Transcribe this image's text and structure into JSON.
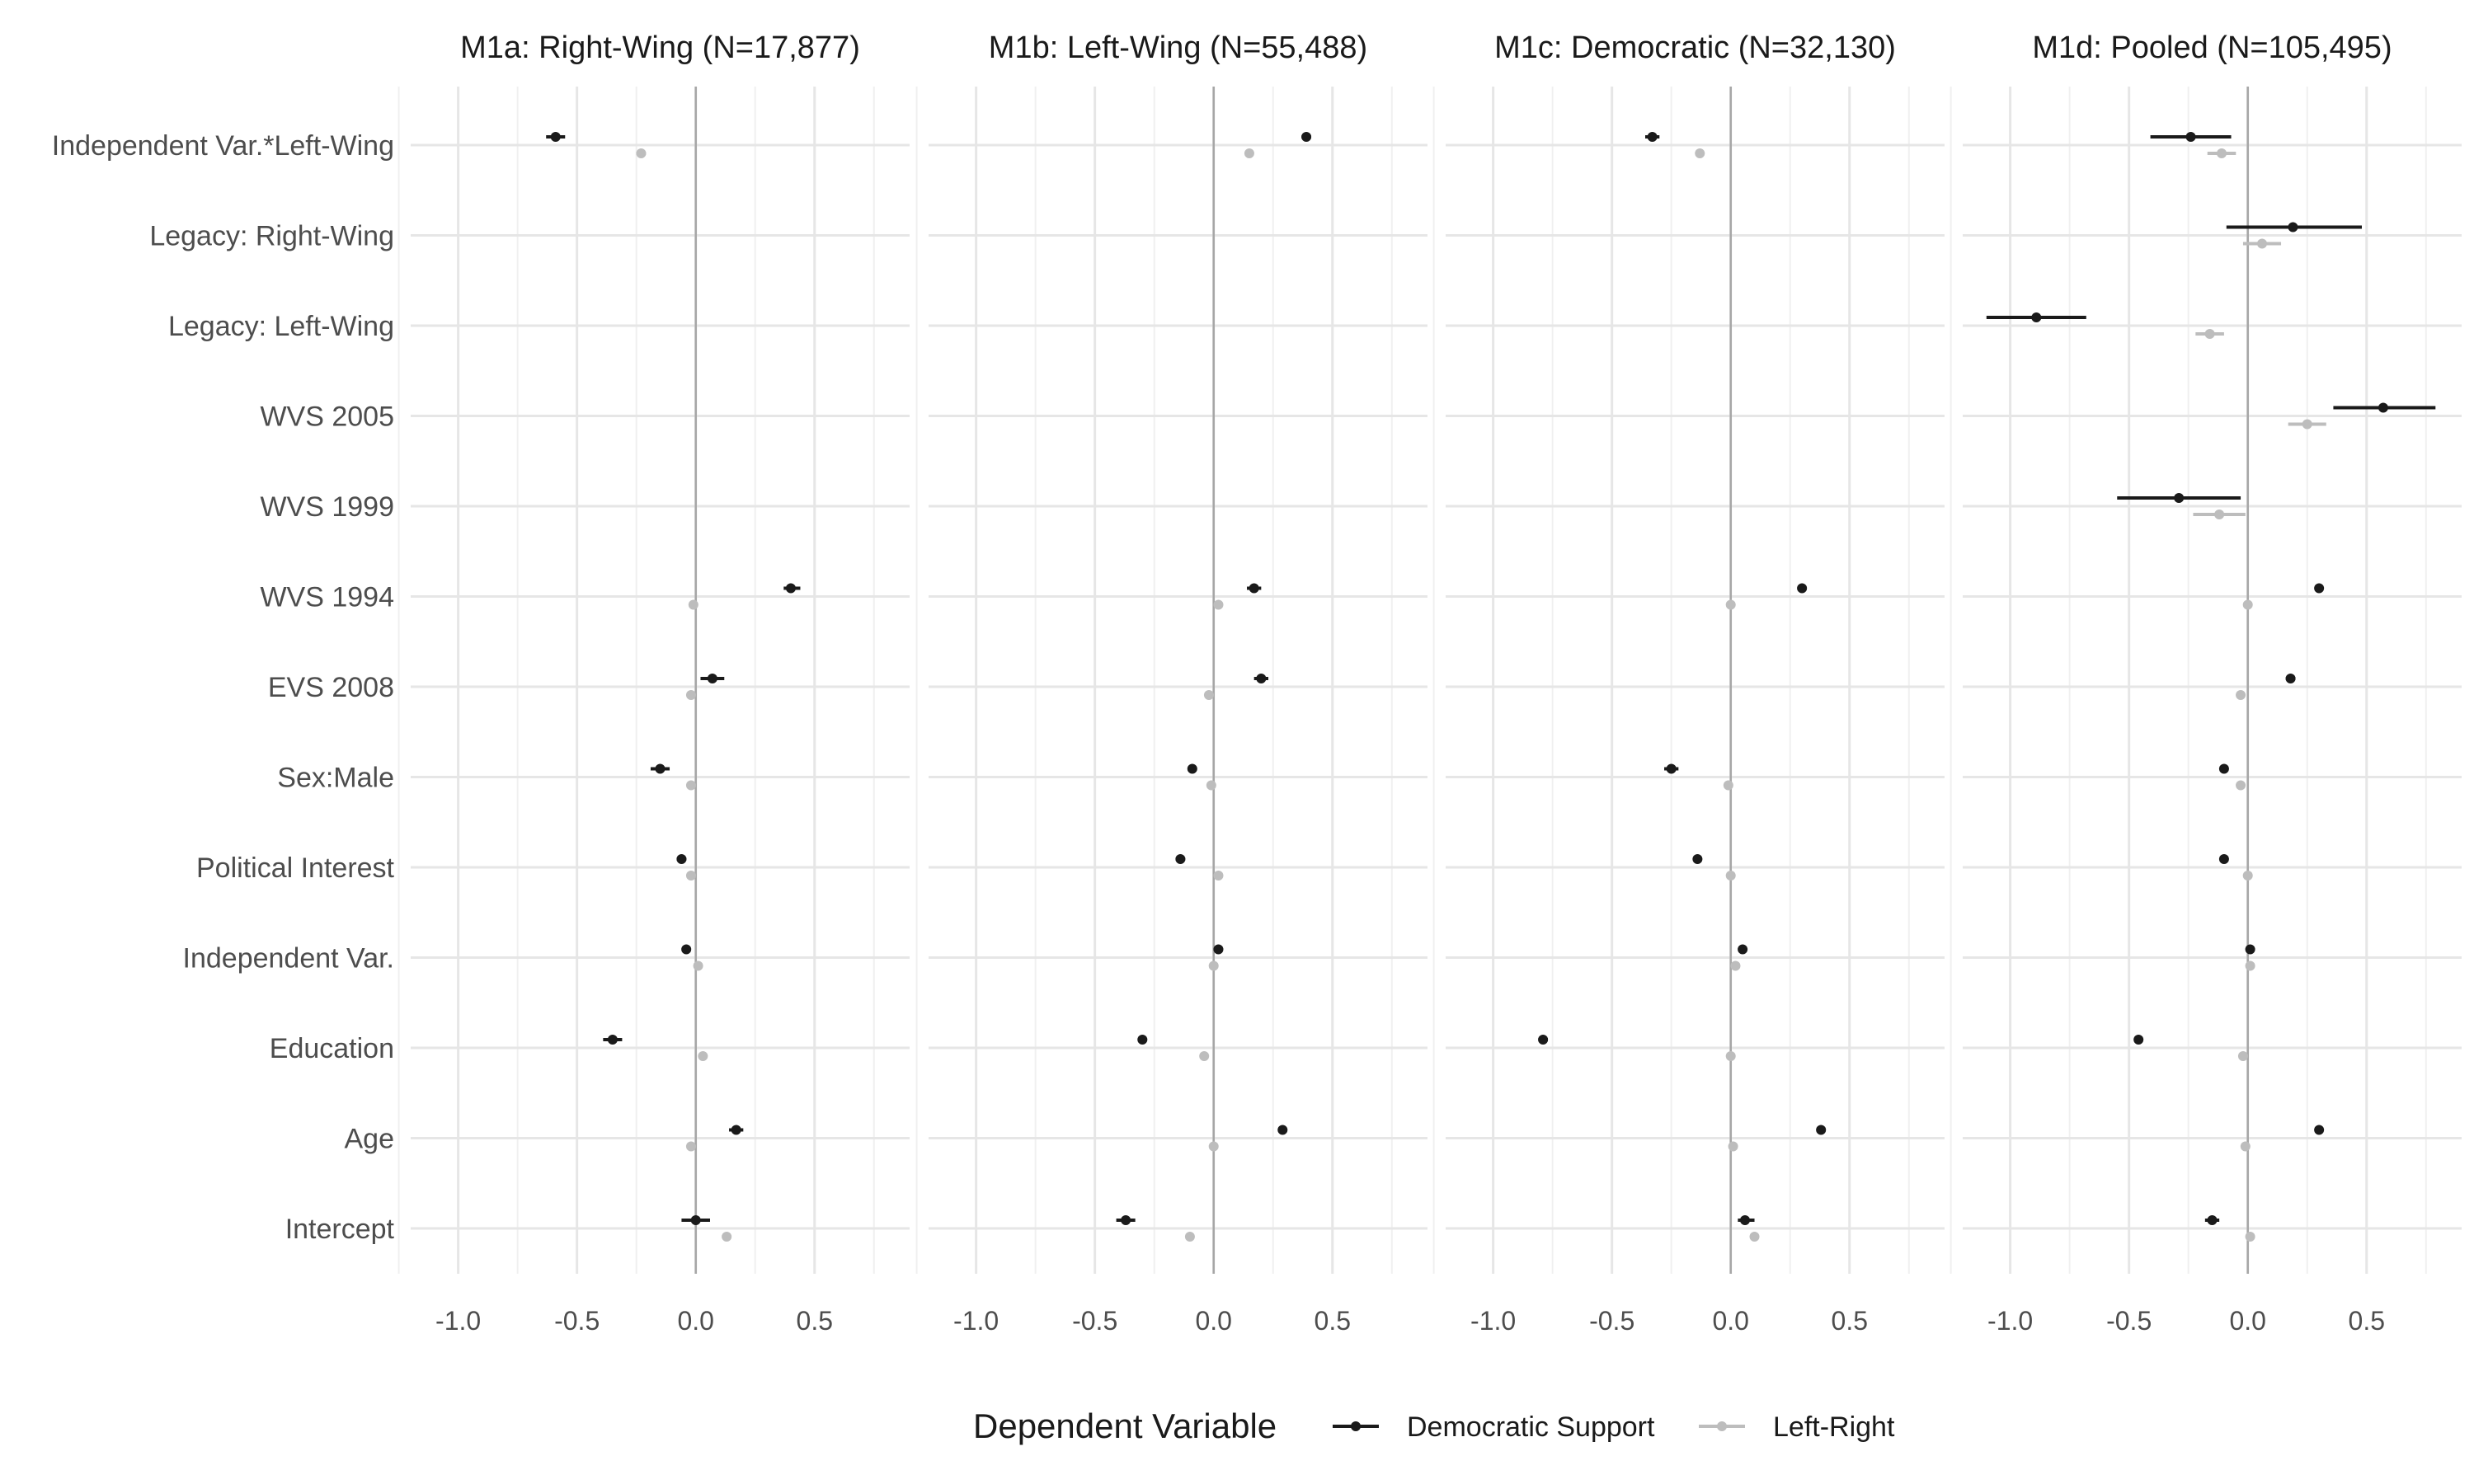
{
  "chart_data": {
    "type": "scatter",
    "subtype": "coefficient-plot-with-error-bars",
    "facets": [
      "M1a: Right-Wing (N=17,877)",
      "M1b: Left-Wing (N=55,488)",
      "M1c: Democratic (N=32,130)",
      "M1d: Pooled (N=105,495)"
    ],
    "categories": [
      "Independent Var.*Left-Wing",
      "Legacy: Right-Wing",
      "Legacy: Left-Wing",
      "WVS 2005",
      "WVS 1999",
      "WVS 1994",
      "EVS 2008",
      "Sex:Male",
      "Political Interest",
      "Independent Var.",
      "Education",
      "Age",
      "Intercept"
    ],
    "xlim": [
      -1.2,
      0.9
    ],
    "xticks": [
      -1.0,
      -0.5,
      0.0,
      0.5
    ],
    "xtick_labels": [
      "-1.0",
      "-0.5",
      "0.0",
      "0.5"
    ],
    "grid": true,
    "legend": {
      "title": "Dependent Variable",
      "position": "bottom",
      "entries": [
        "Democratic Support",
        "Left-Right"
      ]
    },
    "colors": {
      "Democratic Support": "#1a1a1a",
      "Left-Right": "#bdbdbd"
    },
    "panels": [
      {
        "series": {
          "Democratic Support": [
            {
              "category": "Independent Var.*Left-Wing",
              "est": -0.59,
              "lo": -0.63,
              "hi": -0.55
            },
            {
              "category": "WVS 1994",
              "est": 0.4,
              "lo": 0.37,
              "hi": 0.44
            },
            {
              "category": "EVS 2008",
              "est": 0.07,
              "lo": 0.02,
              "hi": 0.12
            },
            {
              "category": "Sex:Male",
              "est": -0.15,
              "lo": -0.19,
              "hi": -0.11
            },
            {
              "category": "Political Interest",
              "est": -0.06,
              "lo": -0.08,
              "hi": -0.04
            },
            {
              "category": "Independent Var.",
              "est": -0.04,
              "lo": -0.06,
              "hi": -0.02
            },
            {
              "category": "Education",
              "est": -0.35,
              "lo": -0.39,
              "hi": -0.31
            },
            {
              "category": "Age",
              "est": 0.17,
              "lo": 0.14,
              "hi": 0.2
            },
            {
              "category": "Intercept",
              "est": 0.0,
              "lo": -0.06,
              "hi": 0.06
            }
          ],
          "Left-Right": [
            {
              "category": "Independent Var.*Left-Wing",
              "est": -0.23,
              "lo": -0.25,
              "hi": -0.21
            },
            {
              "category": "WVS 1994",
              "est": -0.01,
              "lo": -0.02,
              "hi": 0.0
            },
            {
              "category": "EVS 2008",
              "est": -0.02,
              "lo": -0.03,
              "hi": -0.01
            },
            {
              "category": "Sex:Male",
              "est": -0.02,
              "lo": -0.03,
              "hi": -0.01
            },
            {
              "category": "Political Interest",
              "est": -0.02,
              "lo": -0.03,
              "hi": -0.01
            },
            {
              "category": "Independent Var.",
              "est": 0.01,
              "lo": 0.0,
              "hi": 0.02
            },
            {
              "category": "Education",
              "est": 0.03,
              "lo": 0.02,
              "hi": 0.04
            },
            {
              "category": "Age",
              "est": -0.02,
              "lo": -0.03,
              "hi": -0.01
            },
            {
              "category": "Intercept",
              "est": 0.13,
              "lo": 0.11,
              "hi": 0.15
            }
          ]
        }
      },
      {
        "series": {
          "Democratic Support": [
            {
              "category": "Independent Var.*Left-Wing",
              "est": 0.39,
              "lo": 0.37,
              "hi": 0.41
            },
            {
              "category": "WVS 1994",
              "est": 0.17,
              "lo": 0.14,
              "hi": 0.2
            },
            {
              "category": "EVS 2008",
              "est": 0.2,
              "lo": 0.17,
              "hi": 0.23
            },
            {
              "category": "Sex:Male",
              "est": -0.09,
              "lo": -0.11,
              "hi": -0.07
            },
            {
              "category": "Political Interest",
              "est": -0.14,
              "lo": -0.16,
              "hi": -0.12
            },
            {
              "category": "Independent Var.",
              "est": 0.02,
              "lo": 0.0,
              "hi": 0.03
            },
            {
              "category": "Education",
              "est": -0.3,
              "lo": -0.32,
              "hi": -0.28
            },
            {
              "category": "Age",
              "est": 0.29,
              "lo": 0.27,
              "hi": 0.31
            },
            {
              "category": "Intercept",
              "est": -0.37,
              "lo": -0.41,
              "hi": -0.33
            }
          ],
          "Left-Right": [
            {
              "category": "Independent Var.*Left-Wing",
              "est": 0.15,
              "lo": 0.14,
              "hi": 0.16
            },
            {
              "category": "WVS 1994",
              "est": 0.02,
              "lo": 0.01,
              "hi": 0.03
            },
            {
              "category": "EVS 2008",
              "est": -0.02,
              "lo": -0.03,
              "hi": -0.01
            },
            {
              "category": "Sex:Male",
              "est": -0.01,
              "lo": -0.02,
              "hi": 0.0
            },
            {
              "category": "Political Interest",
              "est": 0.02,
              "lo": 0.01,
              "hi": 0.03
            },
            {
              "category": "Independent Var.",
              "est": 0.0,
              "lo": -0.01,
              "hi": 0.01
            },
            {
              "category": "Education",
              "est": -0.04,
              "lo": -0.05,
              "hi": -0.03
            },
            {
              "category": "Age",
              "est": 0.0,
              "lo": -0.01,
              "hi": 0.01
            },
            {
              "category": "Intercept",
              "est": -0.1,
              "lo": -0.11,
              "hi": -0.09
            }
          ]
        }
      },
      {
        "series": {
          "Democratic Support": [
            {
              "category": "Independent Var.*Left-Wing",
              "est": -0.33,
              "lo": -0.36,
              "hi": -0.3
            },
            {
              "category": "WVS 1994",
              "est": 0.3,
              "lo": 0.28,
              "hi": 0.32
            },
            {
              "category": "Sex:Male",
              "est": -0.25,
              "lo": -0.28,
              "hi": -0.22
            },
            {
              "category": "Political Interest",
              "est": -0.14,
              "lo": -0.15,
              "hi": -0.13
            },
            {
              "category": "Independent Var.",
              "est": 0.05,
              "lo": 0.04,
              "hi": 0.06
            },
            {
              "category": "Education",
              "est": -0.79,
              "lo": -0.81,
              "hi": -0.77
            },
            {
              "category": "Age",
              "est": 0.38,
              "lo": 0.36,
              "hi": 0.4
            },
            {
              "category": "Intercept",
              "est": 0.06,
              "lo": 0.03,
              "hi": 0.1
            }
          ],
          "Left-Right": [
            {
              "category": "Independent Var.*Left-Wing",
              "est": -0.13,
              "lo": -0.14,
              "hi": -0.12
            },
            {
              "category": "WVS 1994",
              "est": 0.0,
              "lo": -0.01,
              "hi": 0.01
            },
            {
              "category": "Sex:Male",
              "est": -0.01,
              "lo": -0.02,
              "hi": 0.0
            },
            {
              "category": "Political Interest",
              "est": 0.0,
              "lo": -0.01,
              "hi": 0.01
            },
            {
              "category": "Independent Var.",
              "est": 0.02,
              "lo": 0.01,
              "hi": 0.03
            },
            {
              "category": "Education",
              "est": 0.0,
              "lo": -0.01,
              "hi": 0.01
            },
            {
              "category": "Age",
              "est": 0.01,
              "lo": 0.0,
              "hi": 0.02
            },
            {
              "category": "Intercept",
              "est": 0.1,
              "lo": 0.09,
              "hi": 0.11
            }
          ]
        }
      },
      {
        "series": {
          "Democratic Support": [
            {
              "category": "Independent Var.*Left-Wing",
              "est": -0.24,
              "lo": -0.41,
              "hi": -0.07
            },
            {
              "category": "Legacy: Right-Wing",
              "est": 0.19,
              "lo": -0.09,
              "hi": 0.48
            },
            {
              "category": "Legacy: Left-Wing",
              "est": -0.89,
              "lo": -1.1,
              "hi": -0.68
            },
            {
              "category": "WVS 2005",
              "est": 0.57,
              "lo": 0.36,
              "hi": 0.79
            },
            {
              "category": "WVS 1999",
              "est": -0.29,
              "lo": -0.55,
              "hi": -0.03
            },
            {
              "category": "WVS 1994",
              "est": 0.3,
              "lo": 0.29,
              "hi": 0.31
            },
            {
              "category": "EVS 2008",
              "est": 0.18,
              "lo": 0.16,
              "hi": 0.2
            },
            {
              "category": "Sex:Male",
              "est": -0.1,
              "lo": -0.11,
              "hi": -0.09
            },
            {
              "category": "Political Interest",
              "est": -0.1,
              "lo": -0.11,
              "hi": -0.09
            },
            {
              "category": "Independent Var.",
              "est": 0.01,
              "lo": 0.0,
              "hi": 0.02
            },
            {
              "category": "Education",
              "est": -0.46,
              "lo": -0.47,
              "hi": -0.45
            },
            {
              "category": "Age",
              "est": 0.3,
              "lo": 0.29,
              "hi": 0.31
            },
            {
              "category": "Intercept",
              "est": -0.15,
              "lo": -0.18,
              "hi": -0.12
            }
          ],
          "Left-Right": [
            {
              "category": "Independent Var.*Left-Wing",
              "est": -0.11,
              "lo": -0.17,
              "hi": -0.05
            },
            {
              "category": "Legacy: Right-Wing",
              "est": 0.06,
              "lo": -0.02,
              "hi": 0.14
            },
            {
              "category": "Legacy: Left-Wing",
              "est": -0.16,
              "lo": -0.22,
              "hi": -0.1
            },
            {
              "category": "WVS 2005",
              "est": 0.25,
              "lo": 0.17,
              "hi": 0.33
            },
            {
              "category": "WVS 1999",
              "est": -0.12,
              "lo": -0.23,
              "hi": -0.01
            },
            {
              "category": "WVS 1994",
              "est": 0.0,
              "lo": -0.01,
              "hi": 0.01
            },
            {
              "category": "EVS 2008",
              "est": -0.03,
              "lo": -0.04,
              "hi": -0.02
            },
            {
              "category": "Sex:Male",
              "est": -0.03,
              "lo": -0.04,
              "hi": -0.02
            },
            {
              "category": "Political Interest",
              "est": 0.0,
              "lo": -0.01,
              "hi": 0.01
            },
            {
              "category": "Independent Var.",
              "est": 0.01,
              "lo": 0.0,
              "hi": 0.02
            },
            {
              "category": "Education",
              "est": -0.02,
              "lo": -0.03,
              "hi": -0.01
            },
            {
              "category": "Age",
              "est": -0.01,
              "lo": -0.02,
              "hi": 0.0
            },
            {
              "category": "Intercept",
              "est": 0.01,
              "lo": 0.0,
              "hi": 0.02
            }
          ]
        }
      }
    ]
  }
}
